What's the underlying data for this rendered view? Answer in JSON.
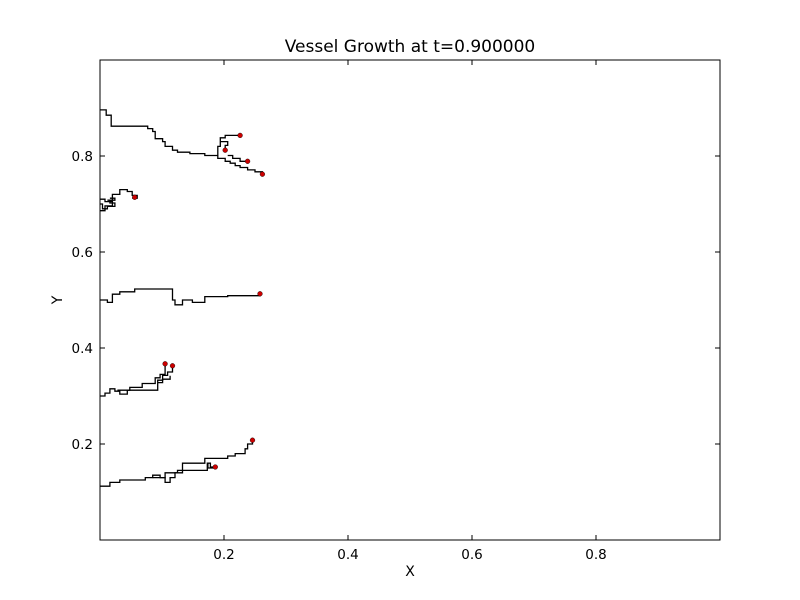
{
  "chart_data": {
    "type": "line",
    "title": "Vessel Growth at t=0.900000",
    "xlabel": "X",
    "ylabel": "Y",
    "xlim": [
      0.0,
      1.0
    ],
    "ylim": [
      0.0,
      1.0
    ],
    "x_ticks": [
      0.2,
      0.4,
      0.6,
      0.8
    ],
    "y_ticks": [
      0.2,
      0.4,
      0.6,
      0.8
    ],
    "x_tick_labels": [
      "0.2",
      "0.4",
      "0.6",
      "0.8"
    ],
    "y_tick_labels": [
      "0.2",
      "0.4",
      "0.6",
      "0.8"
    ],
    "grid": false,
    "colors": {
      "vessel": "#000000",
      "tip": "#cc0000"
    },
    "series": [
      {
        "points": [
          [
            0.0,
            0.896
          ],
          [
            0.01,
            0.896
          ],
          [
            0.01,
            0.885
          ],
          [
            0.018,
            0.885
          ],
          [
            0.018,
            0.862
          ],
          [
            0.077,
            0.862
          ],
          [
            0.077,
            0.857
          ],
          [
            0.085,
            0.857
          ],
          [
            0.085,
            0.851
          ],
          [
            0.089,
            0.851
          ],
          [
            0.089,
            0.836
          ],
          [
            0.101,
            0.836
          ],
          [
            0.101,
            0.83
          ],
          [
            0.105,
            0.83
          ],
          [
            0.105,
            0.82
          ],
          [
            0.117,
            0.82
          ],
          [
            0.117,
            0.812
          ],
          [
            0.125,
            0.812
          ],
          [
            0.125,
            0.808
          ],
          [
            0.145,
            0.808
          ],
          [
            0.145,
            0.805
          ],
          [
            0.169,
            0.805
          ],
          [
            0.169,
            0.801
          ],
          [
            0.19,
            0.801
          ],
          [
            0.19,
            0.795
          ],
          [
            0.202,
            0.795
          ],
          [
            0.202,
            0.789
          ],
          [
            0.21,
            0.789
          ],
          [
            0.21,
            0.785
          ],
          [
            0.218,
            0.785
          ],
          [
            0.218,
            0.78
          ],
          [
            0.226,
            0.78
          ],
          [
            0.226,
            0.776
          ],
          [
            0.238,
            0.776
          ],
          [
            0.238,
            0.771
          ],
          [
            0.25,
            0.771
          ],
          [
            0.25,
            0.767
          ],
          [
            0.262,
            0.767
          ],
          [
            0.262,
            0.762
          ]
        ]
      },
      {
        "points": [
          [
            0.19,
            0.801
          ],
          [
            0.19,
            0.82
          ],
          [
            0.194,
            0.82
          ],
          [
            0.194,
            0.838
          ],
          [
            0.202,
            0.838
          ],
          [
            0.202,
            0.843
          ],
          [
            0.226,
            0.843
          ]
        ]
      },
      {
        "points": [
          [
            0.194,
            0.83
          ],
          [
            0.206,
            0.83
          ],
          [
            0.206,
            0.822
          ],
          [
            0.202,
            0.822
          ],
          [
            0.202,
            0.812
          ]
        ]
      },
      {
        "points": [
          [
            0.206,
            0.801
          ],
          [
            0.214,
            0.801
          ],
          [
            0.214,
            0.795
          ],
          [
            0.226,
            0.795
          ],
          [
            0.226,
            0.789
          ],
          [
            0.238,
            0.789
          ]
        ]
      },
      {
        "points": [
          [
            0.0,
            0.7
          ],
          [
            0.004,
            0.7
          ],
          [
            0.004,
            0.69
          ],
          [
            0.012,
            0.69
          ],
          [
            0.012,
            0.695
          ],
          [
            0.024,
            0.695
          ],
          [
            0.024,
            0.702
          ],
          [
            0.016,
            0.702
          ],
          [
            0.016,
            0.708
          ],
          [
            0.02,
            0.708
          ],
          [
            0.02,
            0.72
          ],
          [
            0.032,
            0.72
          ],
          [
            0.032,
            0.73
          ],
          [
            0.044,
            0.73
          ],
          [
            0.044,
            0.726
          ],
          [
            0.052,
            0.726
          ],
          [
            0.052,
            0.718
          ],
          [
            0.06,
            0.718
          ],
          [
            0.06,
            0.712
          ],
          [
            0.052,
            0.712
          ]
        ]
      },
      {
        "points": [
          [
            0.0,
            0.71
          ],
          [
            0.008,
            0.71
          ],
          [
            0.008,
            0.705
          ],
          [
            0.02,
            0.705
          ],
          [
            0.02,
            0.696
          ],
          [
            0.008,
            0.696
          ],
          [
            0.008,
            0.686
          ],
          [
            0.0,
            0.686
          ]
        ]
      },
      {
        "points": [
          [
            0.012,
            0.708
          ],
          [
            0.024,
            0.708
          ],
          [
            0.024,
            0.712
          ],
          [
            0.016,
            0.712
          ]
        ]
      },
      {
        "points": [
          [
            0.0,
            0.5
          ],
          [
            0.012,
            0.5
          ],
          [
            0.012,
            0.495
          ],
          [
            0.02,
            0.495
          ],
          [
            0.02,
            0.512
          ],
          [
            0.032,
            0.512
          ],
          [
            0.032,
            0.517
          ],
          [
            0.056,
            0.517
          ],
          [
            0.056,
            0.523
          ],
          [
            0.117,
            0.523
          ],
          [
            0.117,
            0.5
          ],
          [
            0.121,
            0.5
          ],
          [
            0.121,
            0.49
          ],
          [
            0.133,
            0.49
          ],
          [
            0.133,
            0.5
          ],
          [
            0.149,
            0.5
          ],
          [
            0.149,
            0.495
          ],
          [
            0.169,
            0.495
          ],
          [
            0.169,
            0.507
          ],
          [
            0.206,
            0.507
          ],
          [
            0.206,
            0.509
          ],
          [
            0.258,
            0.509
          ],
          [
            0.258,
            0.513
          ]
        ]
      },
      {
        "points": [
          [
            0.0,
            0.3
          ],
          [
            0.008,
            0.3
          ],
          [
            0.008,
            0.306
          ],
          [
            0.016,
            0.306
          ],
          [
            0.016,
            0.315
          ],
          [
            0.024,
            0.315
          ],
          [
            0.024,
            0.31
          ],
          [
            0.032,
            0.31
          ],
          [
            0.032,
            0.304
          ],
          [
            0.044,
            0.304
          ],
          [
            0.044,
            0.312
          ],
          [
            0.093,
            0.312
          ],
          [
            0.093,
            0.333
          ],
          [
            0.101,
            0.333
          ],
          [
            0.101,
            0.343
          ],
          [
            0.109,
            0.343
          ],
          [
            0.109,
            0.35
          ],
          [
            0.117,
            0.35
          ],
          [
            0.117,
            0.363
          ]
        ]
      },
      {
        "points": [
          [
            0.028,
            0.312
          ],
          [
            0.048,
            0.312
          ],
          [
            0.048,
            0.318
          ],
          [
            0.068,
            0.318
          ],
          [
            0.068,
            0.326
          ],
          [
            0.089,
            0.326
          ],
          [
            0.089,
            0.338
          ],
          [
            0.097,
            0.338
          ],
          [
            0.097,
            0.345
          ],
          [
            0.105,
            0.345
          ],
          [
            0.105,
            0.367
          ]
        ]
      },
      {
        "points": [
          [
            0.093,
            0.328
          ],
          [
            0.101,
            0.328
          ],
          [
            0.101,
            0.335
          ],
          [
            0.113,
            0.335
          ],
          [
            0.113,
            0.342
          ]
        ]
      },
      {
        "points": [
          [
            0.0,
            0.112
          ],
          [
            0.016,
            0.112
          ],
          [
            0.016,
            0.12
          ],
          [
            0.032,
            0.12
          ],
          [
            0.032,
            0.125
          ],
          [
            0.073,
            0.125
          ],
          [
            0.073,
            0.13
          ],
          [
            0.085,
            0.13
          ],
          [
            0.085,
            0.135
          ],
          [
            0.097,
            0.135
          ],
          [
            0.097,
            0.13
          ],
          [
            0.105,
            0.13
          ],
          [
            0.105,
            0.12
          ],
          [
            0.113,
            0.12
          ],
          [
            0.113,
            0.13
          ],
          [
            0.121,
            0.13
          ],
          [
            0.121,
            0.14
          ],
          [
            0.133,
            0.14
          ],
          [
            0.133,
            0.16
          ],
          [
            0.169,
            0.16
          ],
          [
            0.169,
            0.17
          ],
          [
            0.206,
            0.17
          ],
          [
            0.206,
            0.175
          ],
          [
            0.218,
            0.175
          ],
          [
            0.218,
            0.18
          ],
          [
            0.234,
            0.18
          ],
          [
            0.234,
            0.19
          ],
          [
            0.238,
            0.19
          ],
          [
            0.238,
            0.2
          ],
          [
            0.246,
            0.2
          ],
          [
            0.246,
            0.208
          ]
        ]
      },
      {
        "points": [
          [
            0.085,
            0.13
          ],
          [
            0.105,
            0.13
          ],
          [
            0.105,
            0.14
          ],
          [
            0.125,
            0.14
          ],
          [
            0.125,
            0.145
          ],
          [
            0.173,
            0.145
          ],
          [
            0.173,
            0.16
          ],
          [
            0.178,
            0.16
          ],
          [
            0.178,
            0.152
          ],
          [
            0.186,
            0.152
          ]
        ]
      },
      {
        "points": [
          [
            0.174,
            0.16
          ],
          [
            0.174,
            0.15
          ],
          [
            0.186,
            0.15
          ]
        ]
      }
    ],
    "tips": [
      [
        0.226,
        0.843
      ],
      [
        0.202,
        0.812
      ],
      [
        0.238,
        0.789
      ],
      [
        0.262,
        0.762
      ],
      [
        0.056,
        0.714
      ],
      [
        0.258,
        0.513
      ],
      [
        0.105,
        0.367
      ],
      [
        0.117,
        0.363
      ],
      [
        0.246,
        0.208
      ],
      [
        0.186,
        0.152
      ]
    ]
  }
}
